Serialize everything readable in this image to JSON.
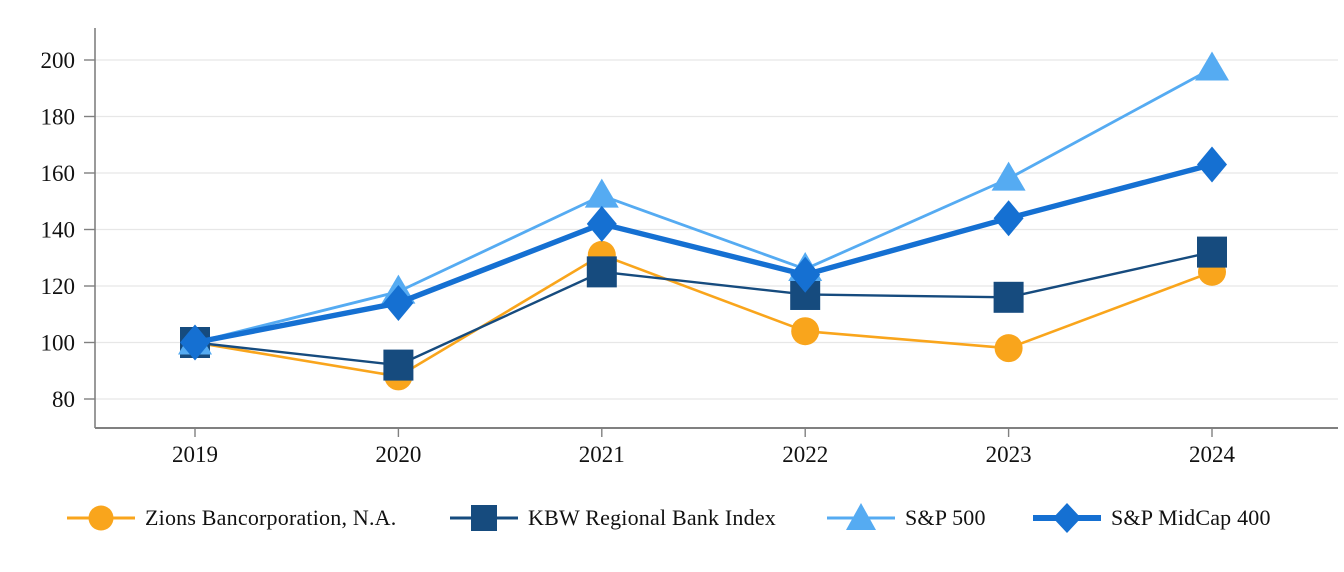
{
  "chart_data": {
    "type": "line",
    "title": "",
    "xlabel": "",
    "ylabel": "",
    "x": [
      "2019",
      "2020",
      "2021",
      "2022",
      "2023",
      "2024"
    ],
    "series": [
      {
        "name": "Zions Bancorporation, N.A.",
        "marker": "circle",
        "color": "#F9A51C",
        "line_width": 2.6,
        "values": [
          100,
          88,
          131,
          104,
          98,
          125
        ]
      },
      {
        "name": "KBW Regional Bank Index",
        "marker": "square",
        "color": "#164B7E",
        "line_width": 2.4,
        "values": [
          100,
          92,
          125,
          117,
          116,
          132
        ]
      },
      {
        "name": "S&P 500",
        "marker": "triangle",
        "color": "#55ABF2",
        "line_width": 2.8,
        "values": [
          100,
          118,
          152,
          126,
          158,
          197
        ]
      },
      {
        "name": "S&P MidCap 400",
        "marker": "diamond",
        "color": "#1570D2",
        "line_width": 5.4,
        "values": [
          100,
          114,
          142,
          124,
          144,
          163
        ]
      }
    ],
    "yticks": [
      80,
      100,
      120,
      140,
      160,
      180,
      200
    ],
    "ylim": [
      70,
      211
    ],
    "grid": true,
    "legend_position": "bottom",
    "colors": {
      "axis": "#808080",
      "grid": "#E7E7E7",
      "tick_label": "#121212"
    }
  }
}
